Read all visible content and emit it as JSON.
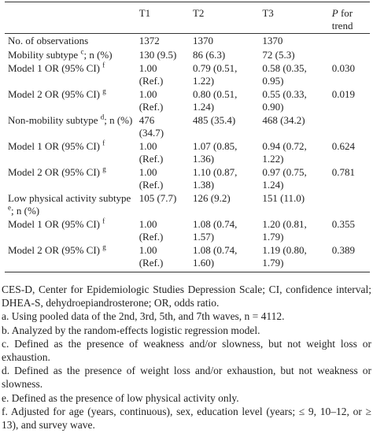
{
  "table": {
    "columns": [
      "T1",
      "T2",
      "T3"
    ],
    "trend_symbol": "P",
    "trend_label": "for trend",
    "rows": [
      {
        "label": "No. of observations",
        "cells": [
          "1372",
          "1370",
          "1370",
          null
        ]
      },
      {
        "label": "Mobility subtype",
        "sup": "c",
        "suffix": "; n (%)",
        "cells": [
          "130 (9.5)",
          "86 (6.3)",
          "72 (5.3)",
          null
        ]
      },
      {
        "label": "Model 1 OR (95% CI)",
        "sup": "f",
        "cells": [
          "1.00 (Ref.)",
          "0.79 (0.51, 1.22)",
          "0.58 (0.35, 0.95)",
          "0.030"
        ]
      },
      {
        "label": "Model 2 OR (95% CI)",
        "sup": "g",
        "cells": [
          "1.00 (Ref.)",
          "0.80 (0.51, 1.24)",
          "0.55 (0.33, 0.90)",
          "0.019"
        ]
      },
      {
        "label": "Non-mobility subtype",
        "sup": "d",
        "suffix": "; n (%)",
        "cells": [
          "476 (34.7)",
          "485 (35.4)",
          "468 (34.2)",
          null
        ]
      },
      {
        "label": "Model 1 OR (95% CI)",
        "sup": "f",
        "cells": [
          "1.00 (Ref.)",
          "1.07 (0.85, 1.36)",
          "0.94 (0.72, 1.22)",
          "0.624"
        ]
      },
      {
        "label": "Model 2 OR (95% CI)",
        "sup": "g",
        "cells": [
          "1.00 (Ref.)",
          "1.10 (0.87, 1.38)",
          "0.97 (0.75, 1.24)",
          "0.781"
        ]
      },
      {
        "label": "Low physical activity subtype",
        "sup": "e",
        "suffix": "; n (%)",
        "cells": [
          "105 (7.7)",
          "126 (9.2)",
          "151 (11.0)",
          null
        ]
      },
      {
        "label": "Model 1 OR (95% CI)",
        "sup": "f",
        "cells": [
          "1.00 (Ref.)",
          "1.08 (0.74, 1.57)",
          "1.20 (0.81, 1.79)",
          "0.355"
        ]
      },
      {
        "label": "Model 2 OR (95% CI)",
        "sup": "g",
        "cells": [
          "1.00 (Ref.)",
          "1.08 (0.74, 1.60)",
          "1.19 (0.80, 1.79)",
          "0.389"
        ]
      }
    ]
  },
  "notes": [
    "CES-D, Center for Epidemiologic Studies Depression Scale; CI, confidence interval; DHEA-S, dehydroepiandrosterone; OR, odds ratio.",
    "a. Using pooled data of the 2nd, 3rd, 5th, and 7th waves, n = 4112.",
    "b. Analyzed by the random-effects logistic regression model.",
    "c. Defined as the presence of weakness and/or slowness, but not weight loss or exhaustion.",
    "d. Defined as the presence of weight loss and/or exhaustion, but not weakness or slowness.",
    "e. Defined as the presence of low physical activity only.",
    "f. Adjusted for age (years, continuous), sex, education level (years; ≤ 9, 10–12, or ≥ 13), and survey wave."
  ]
}
